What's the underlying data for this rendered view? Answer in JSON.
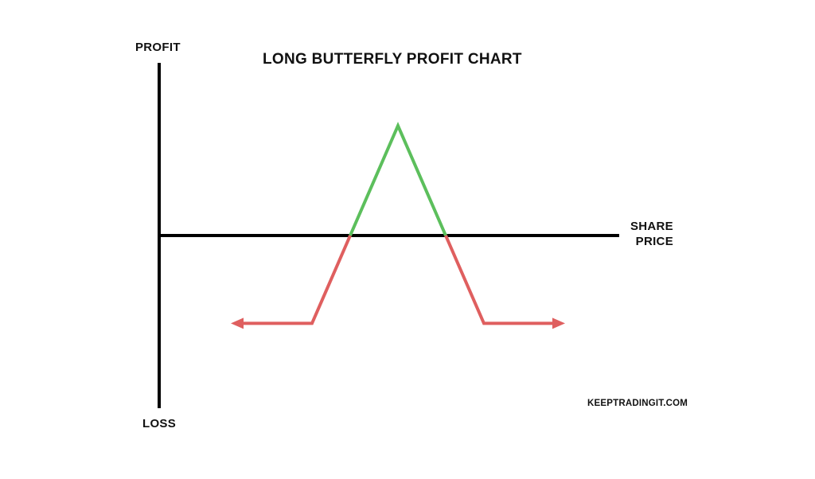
{
  "chart_data": {
    "type": "line",
    "title": "LONG BUTTERFLY PROFIT CHART",
    "ylabel_top": "PROFIT",
    "ylabel_bottom": "LOSS",
    "xlabel": "SHARE PRICE",
    "annotation": "KEEPTRADINGIT.COM",
    "axes": {
      "x_range": [
        0,
        10
      ],
      "y_range": [
        -2,
        2
      ]
    },
    "series": [
      {
        "segment": "profit",
        "color": "#5cbf5c",
        "points": [
          [
            4.0,
            0.0
          ],
          [
            5.0,
            1.0
          ],
          [
            6.0,
            0.0
          ]
        ]
      },
      {
        "segment": "loss",
        "color": "#df5f5f",
        "points": [
          [
            1.5,
            -0.8
          ],
          [
            3.2,
            -0.8
          ],
          [
            4.0,
            0.0
          ]
        ],
        "arrow": "start"
      },
      {
        "segment": "loss",
        "color": "#df5f5f",
        "points": [
          [
            6.0,
            0.0
          ],
          [
            6.8,
            -0.8
          ],
          [
            8.5,
            -0.8
          ]
        ],
        "arrow": "end"
      }
    ],
    "grid": false,
    "legend": "none"
  }
}
